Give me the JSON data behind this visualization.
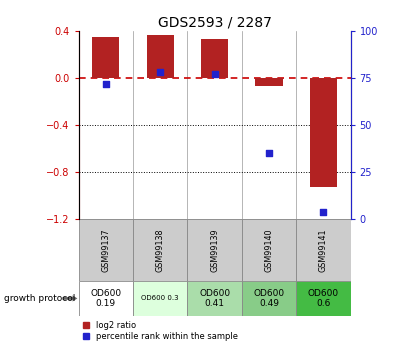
{
  "title": "GDS2593 / 2287",
  "samples": [
    "GSM99137",
    "GSM99138",
    "GSM99139",
    "GSM99140",
    "GSM99141"
  ],
  "log2_ratio": [
    0.35,
    0.37,
    0.33,
    -0.07,
    -0.93
  ],
  "percentile_rank_pct": [
    72,
    78,
    77,
    35,
    4
  ],
  "ylim_left": [
    -1.2,
    0.4
  ],
  "ylim_right": [
    0,
    100
  ],
  "yticks_left": [
    0.4,
    0.0,
    -0.4,
    -0.8,
    -1.2
  ],
  "yticks_right": [
    100,
    75,
    50,
    25,
    0
  ],
  "bar_color": "#b22222",
  "dot_color": "#2222cc",
  "zero_line_color": "#cc0000",
  "dot_size": 18,
  "bar_width": 0.5,
  "protocol_labels": [
    "OD600\n0.19",
    "OD600 0.3",
    "OD600\n0.41",
    "OD600\n0.49",
    "OD600\n0.6"
  ],
  "protocol_colors": [
    "#ffffff",
    "#ddffdd",
    "#aaddaa",
    "#88cc88",
    "#44bb44"
  ],
  "legend_log2": "log2 ratio",
  "legend_pct": "percentile rank within the sample",
  "growth_protocol_text": "growth protocol"
}
